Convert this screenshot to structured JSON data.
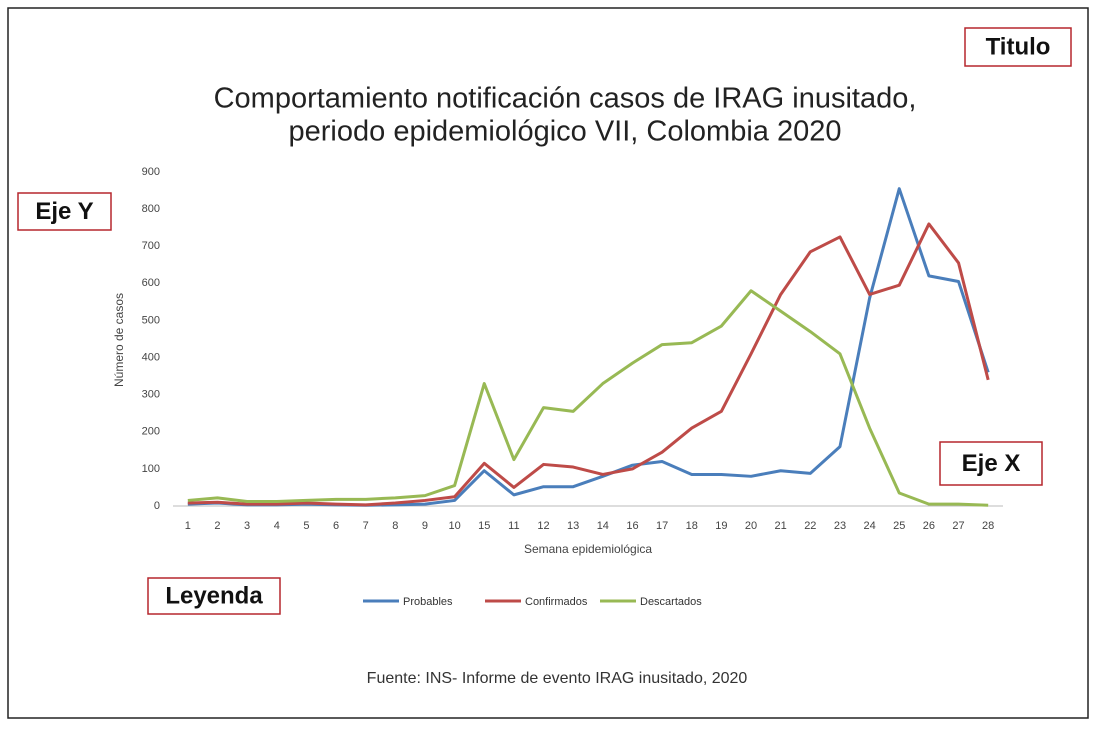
{
  "chart_data": {
    "type": "line",
    "title": [
      "Comportamiento notificación casos de IRAG inusitado,",
      "periodo epidemiológico VII, Colombia 2020"
    ],
    "x_label": "Semana epidemiológica",
    "y_label": "Número de casos",
    "source": "Fuente: INS- Informe de evento IRAG inusitado, 2020",
    "categories": [
      "1",
      "2",
      "3",
      "4",
      "5",
      "6",
      "7",
      "8",
      "9",
      "10",
      "15",
      "11",
      "12",
      "13",
      "14",
      "16",
      "17",
      "18",
      "19",
      "20",
      "21",
      "22",
      "23",
      "24",
      "25",
      "26",
      "27",
      "28"
    ],
    "series": [
      {
        "name": "Probables",
        "color": "#4a7ebb",
        "values": [
          5,
          8,
          3,
          3,
          5,
          3,
          2,
          3,
          5,
          15,
          95,
          30,
          52,
          52,
          80,
          110,
          120,
          85,
          85,
          80,
          95,
          88,
          160,
          560,
          855,
          620,
          605,
          360
        ]
      },
      {
        "name": "Confirmados",
        "color": "#be4b48",
        "values": [
          8,
          10,
          5,
          5,
          8,
          5,
          3,
          8,
          15,
          25,
          115,
          50,
          112,
          105,
          85,
          100,
          145,
          210,
          255,
          410,
          570,
          685,
          725,
          570,
          595,
          760,
          655,
          340
        ]
      },
      {
        "name": "Descartados",
        "color": "#98b954",
        "values": [
          15,
          22,
          12,
          12,
          15,
          18,
          18,
          22,
          28,
          55,
          330,
          125,
          265,
          255,
          330,
          385,
          435,
          440,
          485,
          580,
          525,
          470,
          410,
          210,
          35,
          5,
          5,
          2
        ]
      }
    ],
    "ylim": [
      0,
      900
    ],
    "yticks": [
      0,
      100,
      200,
      300,
      400,
      500,
      600,
      700,
      800,
      900
    ],
    "grid": false,
    "legend": "bottom",
    "annotations": [
      "Titulo",
      "Eje Y",
      "Eje X",
      "Leyenda"
    ]
  }
}
